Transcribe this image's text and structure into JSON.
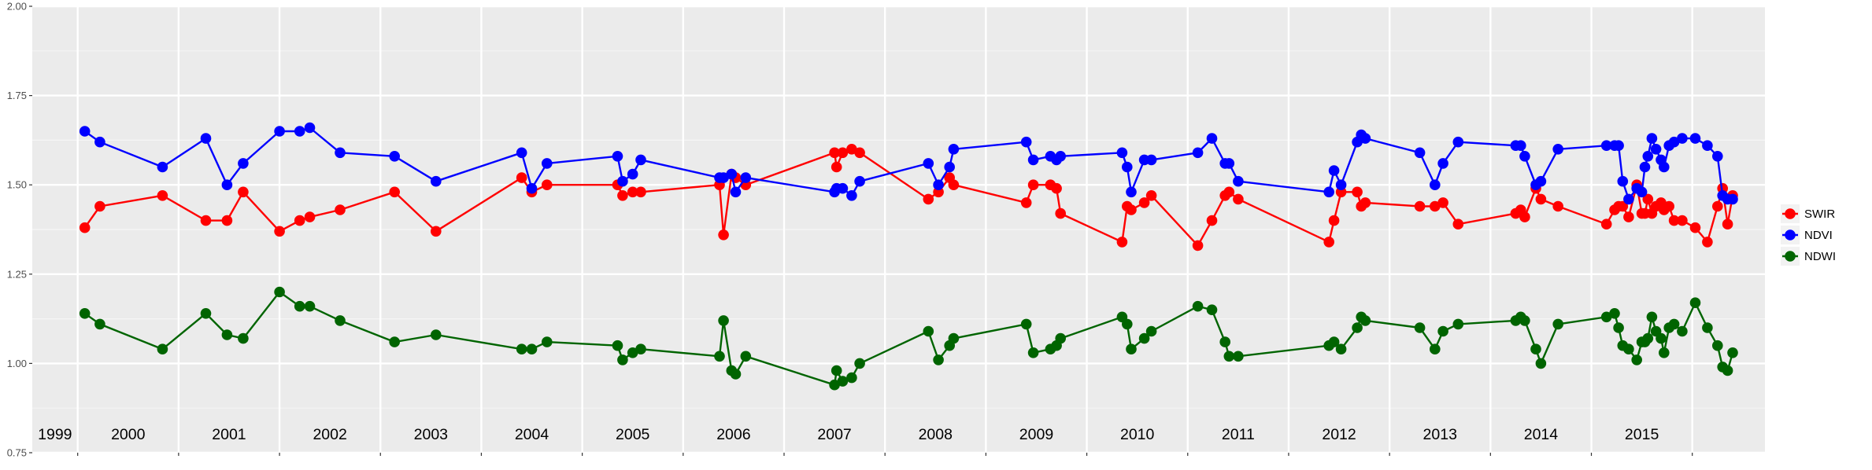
{
  "chart_data": {
    "type": "line",
    "title": "",
    "xlabel": "",
    "ylabel": "",
    "xlim": [
      1998.55,
      2015.72
    ],
    "ylim": [
      0.75,
      2.0
    ],
    "y_ticks": [
      0.75,
      1.0,
      1.25,
      1.5,
      1.75,
      2.0
    ],
    "y_tick_labels": [
      "0.75",
      "1.00",
      "1.25",
      "1.50",
      "1.75",
      "2.00"
    ],
    "year_labels": [
      "1999",
      "2000",
      "2001",
      "2002",
      "2003",
      "2004",
      "2005",
      "2006",
      "2007",
      "2008",
      "2009",
      "2010",
      "2011",
      "2012",
      "2013",
      "2014",
      "2015"
    ],
    "grid": true,
    "legend_position": "right",
    "background": "#EBEBEB",
    "series": [
      {
        "name": "SWIR",
        "color": "#FF0000",
        "x": [
          1999.07,
          1999.22,
          1999.84,
          2000.27,
          2000.48,
          2000.64,
          2001.0,
          2001.2,
          2001.3,
          2001.6,
          2002.14,
          2002.55,
          2003.4,
          2003.5,
          2003.65,
          2004.35,
          2004.4,
          2004.5,
          2004.58,
          2005.36,
          2005.4,
          2005.48,
          2005.52,
          2005.62,
          2006.5,
          2006.52,
          2006.58,
          2006.67,
          2006.75,
          2007.43,
          2007.53,
          2007.64,
          2007.68,
          2008.4,
          2008.47,
          2008.64,
          2008.7,
          2008.74,
          2009.35,
          2009.4,
          2009.44,
          2009.57,
          2009.64,
          2010.1,
          2010.24,
          2010.37,
          2010.41,
          2010.5,
          2011.4,
          2011.45,
          2011.52,
          2011.68,
          2011.72,
          2011.76,
          2012.3,
          2012.45,
          2012.53,
          2012.68,
          2013.25,
          2013.3,
          2013.34,
          2013.45,
          2013.5,
          2013.67,
          2014.15,
          2014.23,
          2014.27,
          2014.31,
          2014.37,
          2014.45,
          2014.5,
          2014.53,
          2014.56,
          2014.6,
          2014.64,
          2014.69,
          2014.72,
          2014.77,
          2014.82,
          2014.9,
          2015.03,
          2015.15,
          2015.25,
          2015.3,
          2015.35,
          2015.4
        ],
        "values": [
          1.38,
          1.44,
          1.47,
          1.4,
          1.4,
          1.48,
          1.37,
          1.4,
          1.41,
          1.43,
          1.48,
          1.37,
          1.52,
          1.48,
          1.5,
          1.5,
          1.47,
          1.48,
          1.48,
          1.5,
          1.36,
          1.53,
          1.52,
          1.5,
          1.59,
          1.55,
          1.59,
          1.6,
          1.59,
          1.46,
          1.48,
          1.52,
          1.5,
          1.45,
          1.5,
          1.5,
          1.49,
          1.42,
          1.34,
          1.44,
          1.43,
          1.45,
          1.47,
          1.33,
          1.4,
          1.47,
          1.48,
          1.46,
          1.34,
          1.4,
          1.48,
          1.48,
          1.44,
          1.45,
          1.44,
          1.44,
          1.45,
          1.39,
          1.42,
          1.43,
          1.41,
          1.49,
          1.46,
          1.44,
          1.39,
          1.43,
          1.44,
          1.44,
          1.41,
          1.5,
          1.42,
          1.42,
          1.46,
          1.42,
          1.44,
          1.45,
          1.43,
          1.44,
          1.4,
          1.4,
          1.38,
          1.34,
          1.44,
          1.49,
          1.39,
          1.47
        ]
      },
      {
        "name": "NDVI",
        "color": "#0000FF",
        "x": [
          1999.07,
          1999.22,
          1999.84,
          2000.27,
          2000.48,
          2000.64,
          2001.0,
          2001.2,
          2001.3,
          2001.6,
          2002.14,
          2002.55,
          2003.4,
          2003.5,
          2003.65,
          2004.35,
          2004.4,
          2004.5,
          2004.58,
          2005.36,
          2005.4,
          2005.48,
          2005.52,
          2005.62,
          2006.5,
          2006.52,
          2006.58,
          2006.67,
          2006.75,
          2007.43,
          2007.53,
          2007.64,
          2007.68,
          2008.4,
          2008.47,
          2008.64,
          2008.7,
          2008.74,
          2009.35,
          2009.4,
          2009.44,
          2009.57,
          2009.64,
          2010.1,
          2010.24,
          2010.37,
          2010.41,
          2010.5,
          2011.4,
          2011.45,
          2011.52,
          2011.68,
          2011.72,
          2011.76,
          2012.3,
          2012.45,
          2012.53,
          2012.68,
          2013.25,
          2013.3,
          2013.34,
          2013.45,
          2013.5,
          2013.67,
          2014.15,
          2014.23,
          2014.27,
          2014.31,
          2014.37,
          2014.45,
          2014.5,
          2014.53,
          2014.56,
          2014.6,
          2014.64,
          2014.69,
          2014.72,
          2014.77,
          2014.82,
          2014.9,
          2015.03,
          2015.15,
          2015.25,
          2015.3,
          2015.35,
          2015.4
        ],
        "values": [
          1.65,
          1.62,
          1.55,
          1.63,
          1.5,
          1.56,
          1.65,
          1.65,
          1.66,
          1.59,
          1.58,
          1.51,
          1.59,
          1.49,
          1.56,
          1.58,
          1.51,
          1.53,
          1.57,
          1.52,
          1.52,
          1.53,
          1.48,
          1.52,
          1.48,
          1.49,
          1.49,
          1.47,
          1.51,
          1.56,
          1.5,
          1.55,
          1.6,
          1.62,
          1.57,
          1.58,
          1.57,
          1.58,
          1.59,
          1.55,
          1.48,
          1.57,
          1.57,
          1.59,
          1.63,
          1.56,
          1.56,
          1.51,
          1.48,
          1.54,
          1.5,
          1.62,
          1.64,
          1.63,
          1.59,
          1.5,
          1.56,
          1.62,
          1.61,
          1.61,
          1.58,
          1.5,
          1.51,
          1.6,
          1.61,
          1.61,
          1.61,
          1.51,
          1.46,
          1.49,
          1.48,
          1.55,
          1.58,
          1.63,
          1.6,
          1.57,
          1.55,
          1.61,
          1.62,
          1.63,
          1.63,
          1.61,
          1.58,
          1.47,
          1.46,
          1.46
        ]
      },
      {
        "name": "NDWI",
        "color": "#006400",
        "x": [
          1999.07,
          1999.22,
          1999.84,
          2000.27,
          2000.48,
          2000.64,
          2001.0,
          2001.2,
          2001.3,
          2001.6,
          2002.14,
          2002.55,
          2003.4,
          2003.5,
          2003.65,
          2004.35,
          2004.4,
          2004.5,
          2004.58,
          2005.36,
          2005.4,
          2005.48,
          2005.52,
          2005.62,
          2006.5,
          2006.52,
          2006.58,
          2006.67,
          2006.75,
          2007.43,
          2007.53,
          2007.64,
          2007.68,
          2008.4,
          2008.47,
          2008.64,
          2008.7,
          2008.74,
          2009.35,
          2009.4,
          2009.44,
          2009.57,
          2009.64,
          2010.1,
          2010.24,
          2010.37,
          2010.41,
          2010.5,
          2011.4,
          2011.45,
          2011.52,
          2011.68,
          2011.72,
          2011.76,
          2012.3,
          2012.45,
          2012.53,
          2012.68,
          2013.25,
          2013.3,
          2013.34,
          2013.45,
          2013.5,
          2013.67,
          2014.15,
          2014.23,
          2014.27,
          2014.31,
          2014.37,
          2014.45,
          2014.5,
          2014.53,
          2014.56,
          2014.6,
          2014.64,
          2014.69,
          2014.72,
          2014.77,
          2014.82,
          2014.9,
          2015.03,
          2015.15,
          2015.25,
          2015.3,
          2015.35,
          2015.4
        ],
        "values": [
          1.14,
          1.11,
          1.04,
          1.14,
          1.08,
          1.07,
          1.2,
          1.16,
          1.16,
          1.12,
          1.06,
          1.08,
          1.04,
          1.04,
          1.06,
          1.05,
          1.01,
          1.03,
          1.04,
          1.02,
          1.12,
          0.98,
          0.97,
          1.02,
          0.94,
          0.98,
          0.95,
          0.96,
          1.0,
          1.09,
          1.01,
          1.05,
          1.07,
          1.11,
          1.03,
          1.04,
          1.05,
          1.07,
          1.13,
          1.11,
          1.04,
          1.07,
          1.09,
          1.16,
          1.15,
          1.06,
          1.02,
          1.02,
          1.05,
          1.06,
          1.04,
          1.1,
          1.13,
          1.12,
          1.1,
          1.04,
          1.09,
          1.11,
          1.12,
          1.13,
          1.12,
          1.04,
          1.0,
          1.11,
          1.13,
          1.14,
          1.1,
          1.05,
          1.04,
          1.01,
          1.06,
          1.06,
          1.07,
          1.13,
          1.09,
          1.07,
          1.03,
          1.1,
          1.11,
          1.09,
          1.17,
          1.1,
          1.05,
          0.99,
          0.98,
          1.03
        ]
      }
    ]
  }
}
